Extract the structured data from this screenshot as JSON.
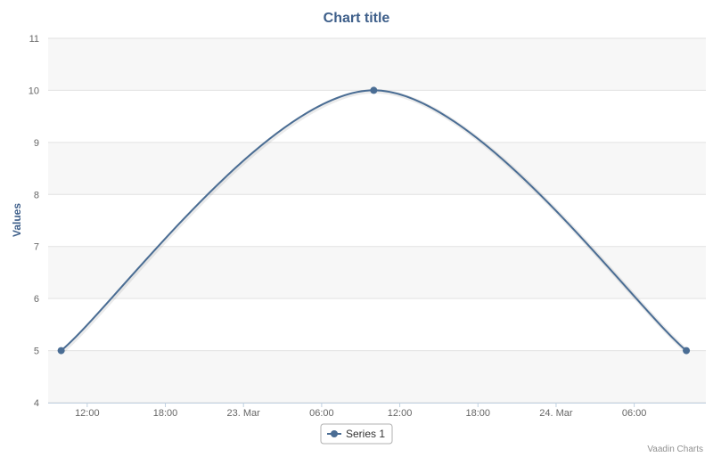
{
  "chart_data": {
    "type": "line",
    "title": "Chart title",
    "xlabel": "",
    "ylabel": "Values",
    "ylim": [
      4,
      11
    ],
    "xlim": [
      "2013-03-22T09:00",
      "2013-03-24T11:30"
    ],
    "yticks": [
      4,
      5,
      6,
      7,
      8,
      9,
      10,
      11
    ],
    "xticks": [
      {
        "t": "2013-03-22T12:00",
        "label": "12:00"
      },
      {
        "t": "2013-03-22T18:00",
        "label": "18:00"
      },
      {
        "t": "2013-03-23T00:00",
        "label": "23. Mar"
      },
      {
        "t": "2013-03-23T06:00",
        "label": "06:00"
      },
      {
        "t": "2013-03-23T12:00",
        "label": "12:00"
      },
      {
        "t": "2013-03-23T18:00",
        "label": "18:00"
      },
      {
        "t": "2013-03-24T00:00",
        "label": "24. Mar"
      },
      {
        "t": "2013-03-24T06:00",
        "label": "06:00"
      }
    ],
    "series": [
      {
        "name": "Series 1",
        "color": "#4a6d94",
        "smooth": true,
        "points": [
          {
            "x": "2013-03-22T10:00",
            "y": 5
          },
          {
            "x": "2013-03-23T10:00",
            "y": 10
          },
          {
            "x": "2013-03-24T10:00",
            "y": 5
          }
        ]
      }
    ],
    "grid": true,
    "alternate_bands": true,
    "legend_position": "bottom-center",
    "credits": "Vaadin Charts"
  }
}
